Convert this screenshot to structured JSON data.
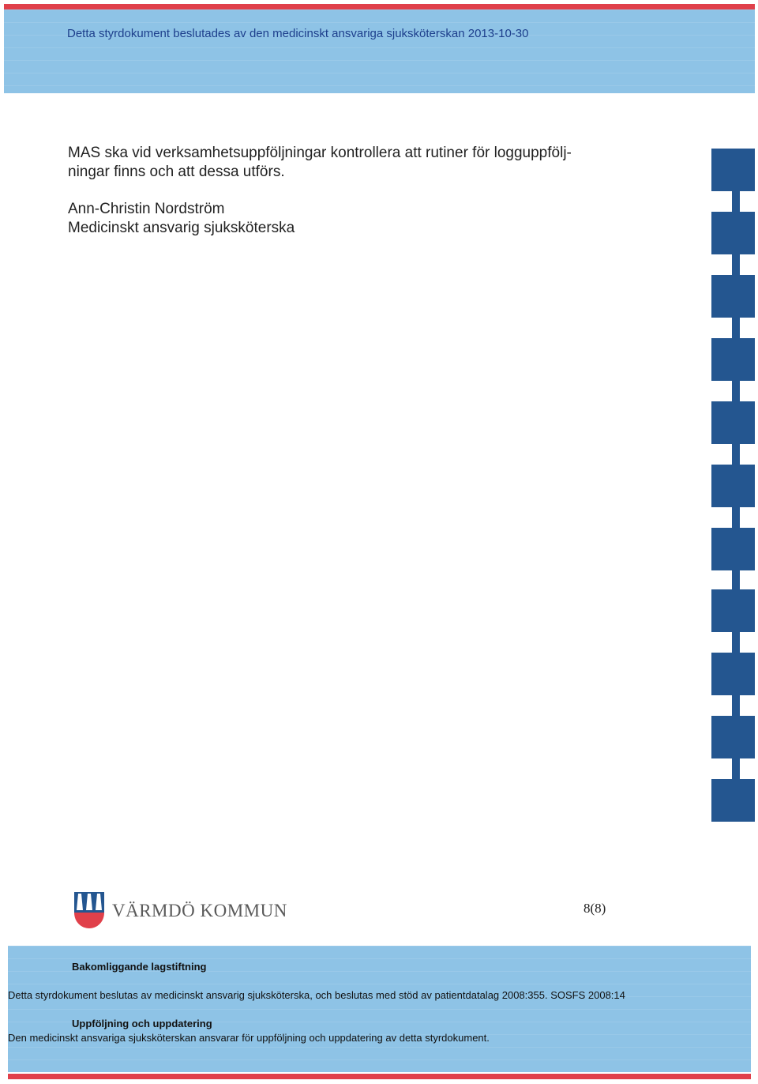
{
  "header": {
    "text": "Detta styrdokument beslutades av den medicinskt ansvariga sjuksköterskan 2013-10-30"
  },
  "body": {
    "paragraph_line1": "MAS ska vid verksamhetsuppföljningar kontrollera att rutiner för logguppfölj-",
    "paragraph_line2": "ningar finns och att dessa utförs.",
    "signature_name": "Ann-Christin Nordström",
    "signature_title": "Medicinskt ansvarig sjuksköterska"
  },
  "logo": {
    "text": "VÄRMDÖ KOMMUN"
  },
  "page_number": "8(8)",
  "footer": {
    "section1_heading": "Bakomliggande lagstiftning",
    "section1_text": "Detta styrdokument beslutas av medicinskt ansvarig sjuksköterska, och beslutas med stöd av patientdatalag 2008:355. SOSFS 2008:14",
    "section2_heading": "Uppföljning och uppdatering",
    "section2_text": "Den medicinskt ansvariga sjuksköterskan ansvarar för uppföljning och uppdatering av detta styrdokument."
  },
  "colors": {
    "band_blue": "#8ec3e6",
    "block_blue": "#245690",
    "accent_red": "#e0404a",
    "header_text": "#1d3f8c"
  }
}
